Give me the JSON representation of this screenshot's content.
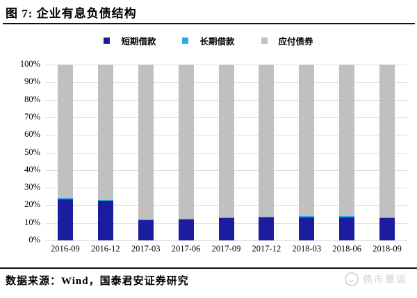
{
  "title": "图 7: 企业有息负债结构",
  "footer": {
    "source_label": "数据来源：Wind，国泰君安证券研究"
  },
  "watermark": {
    "text": "债市覃谈",
    "icon": "wechat-account-logo-icon"
  },
  "colors": {
    "short_term": "#1C1C9E",
    "long_term": "#2EA9E0",
    "bonds": "#C0C0C0",
    "gridline": "#DCDCDC",
    "rule": "#111111",
    "watermark": "#D2D2D2"
  },
  "chart_data": {
    "type": "bar",
    "stacked": true,
    "grid": true,
    "legend_position": "top",
    "categories": [
      "2016-09",
      "2016-12",
      "2017-03",
      "2017-06",
      "2017-09",
      "2017-12",
      "2018-03",
      "2018-06",
      "2018-09"
    ],
    "series": [
      {
        "name": "短期借款",
        "color": "#1C1C9E",
        "values": [
          23.5,
          22.5,
          11.5,
          11.8,
          12.5,
          13.0,
          13.2,
          13.2,
          12.7
        ]
      },
      {
        "name": "长期借款",
        "color": "#2EA9E0",
        "values": [
          0.5,
          0.5,
          0.5,
          0.5,
          0.5,
          0.5,
          0.5,
          0.5,
          0.5
        ]
      },
      {
        "name": "应付债券",
        "color": "#C0C0C0",
        "values": [
          76.0,
          77.0,
          88.0,
          87.7,
          87.0,
          86.5,
          86.3,
          86.3,
          86.8
        ]
      }
    ],
    "ylim": [
      0,
      100
    ],
    "ytick_step": 10,
    "ytick_labels": [
      "0%",
      "10%",
      "20%",
      "30%",
      "40%",
      "50%",
      "60%",
      "70%",
      "80%",
      "90%",
      "100%"
    ],
    "xlabel": "",
    "ylabel": ""
  }
}
